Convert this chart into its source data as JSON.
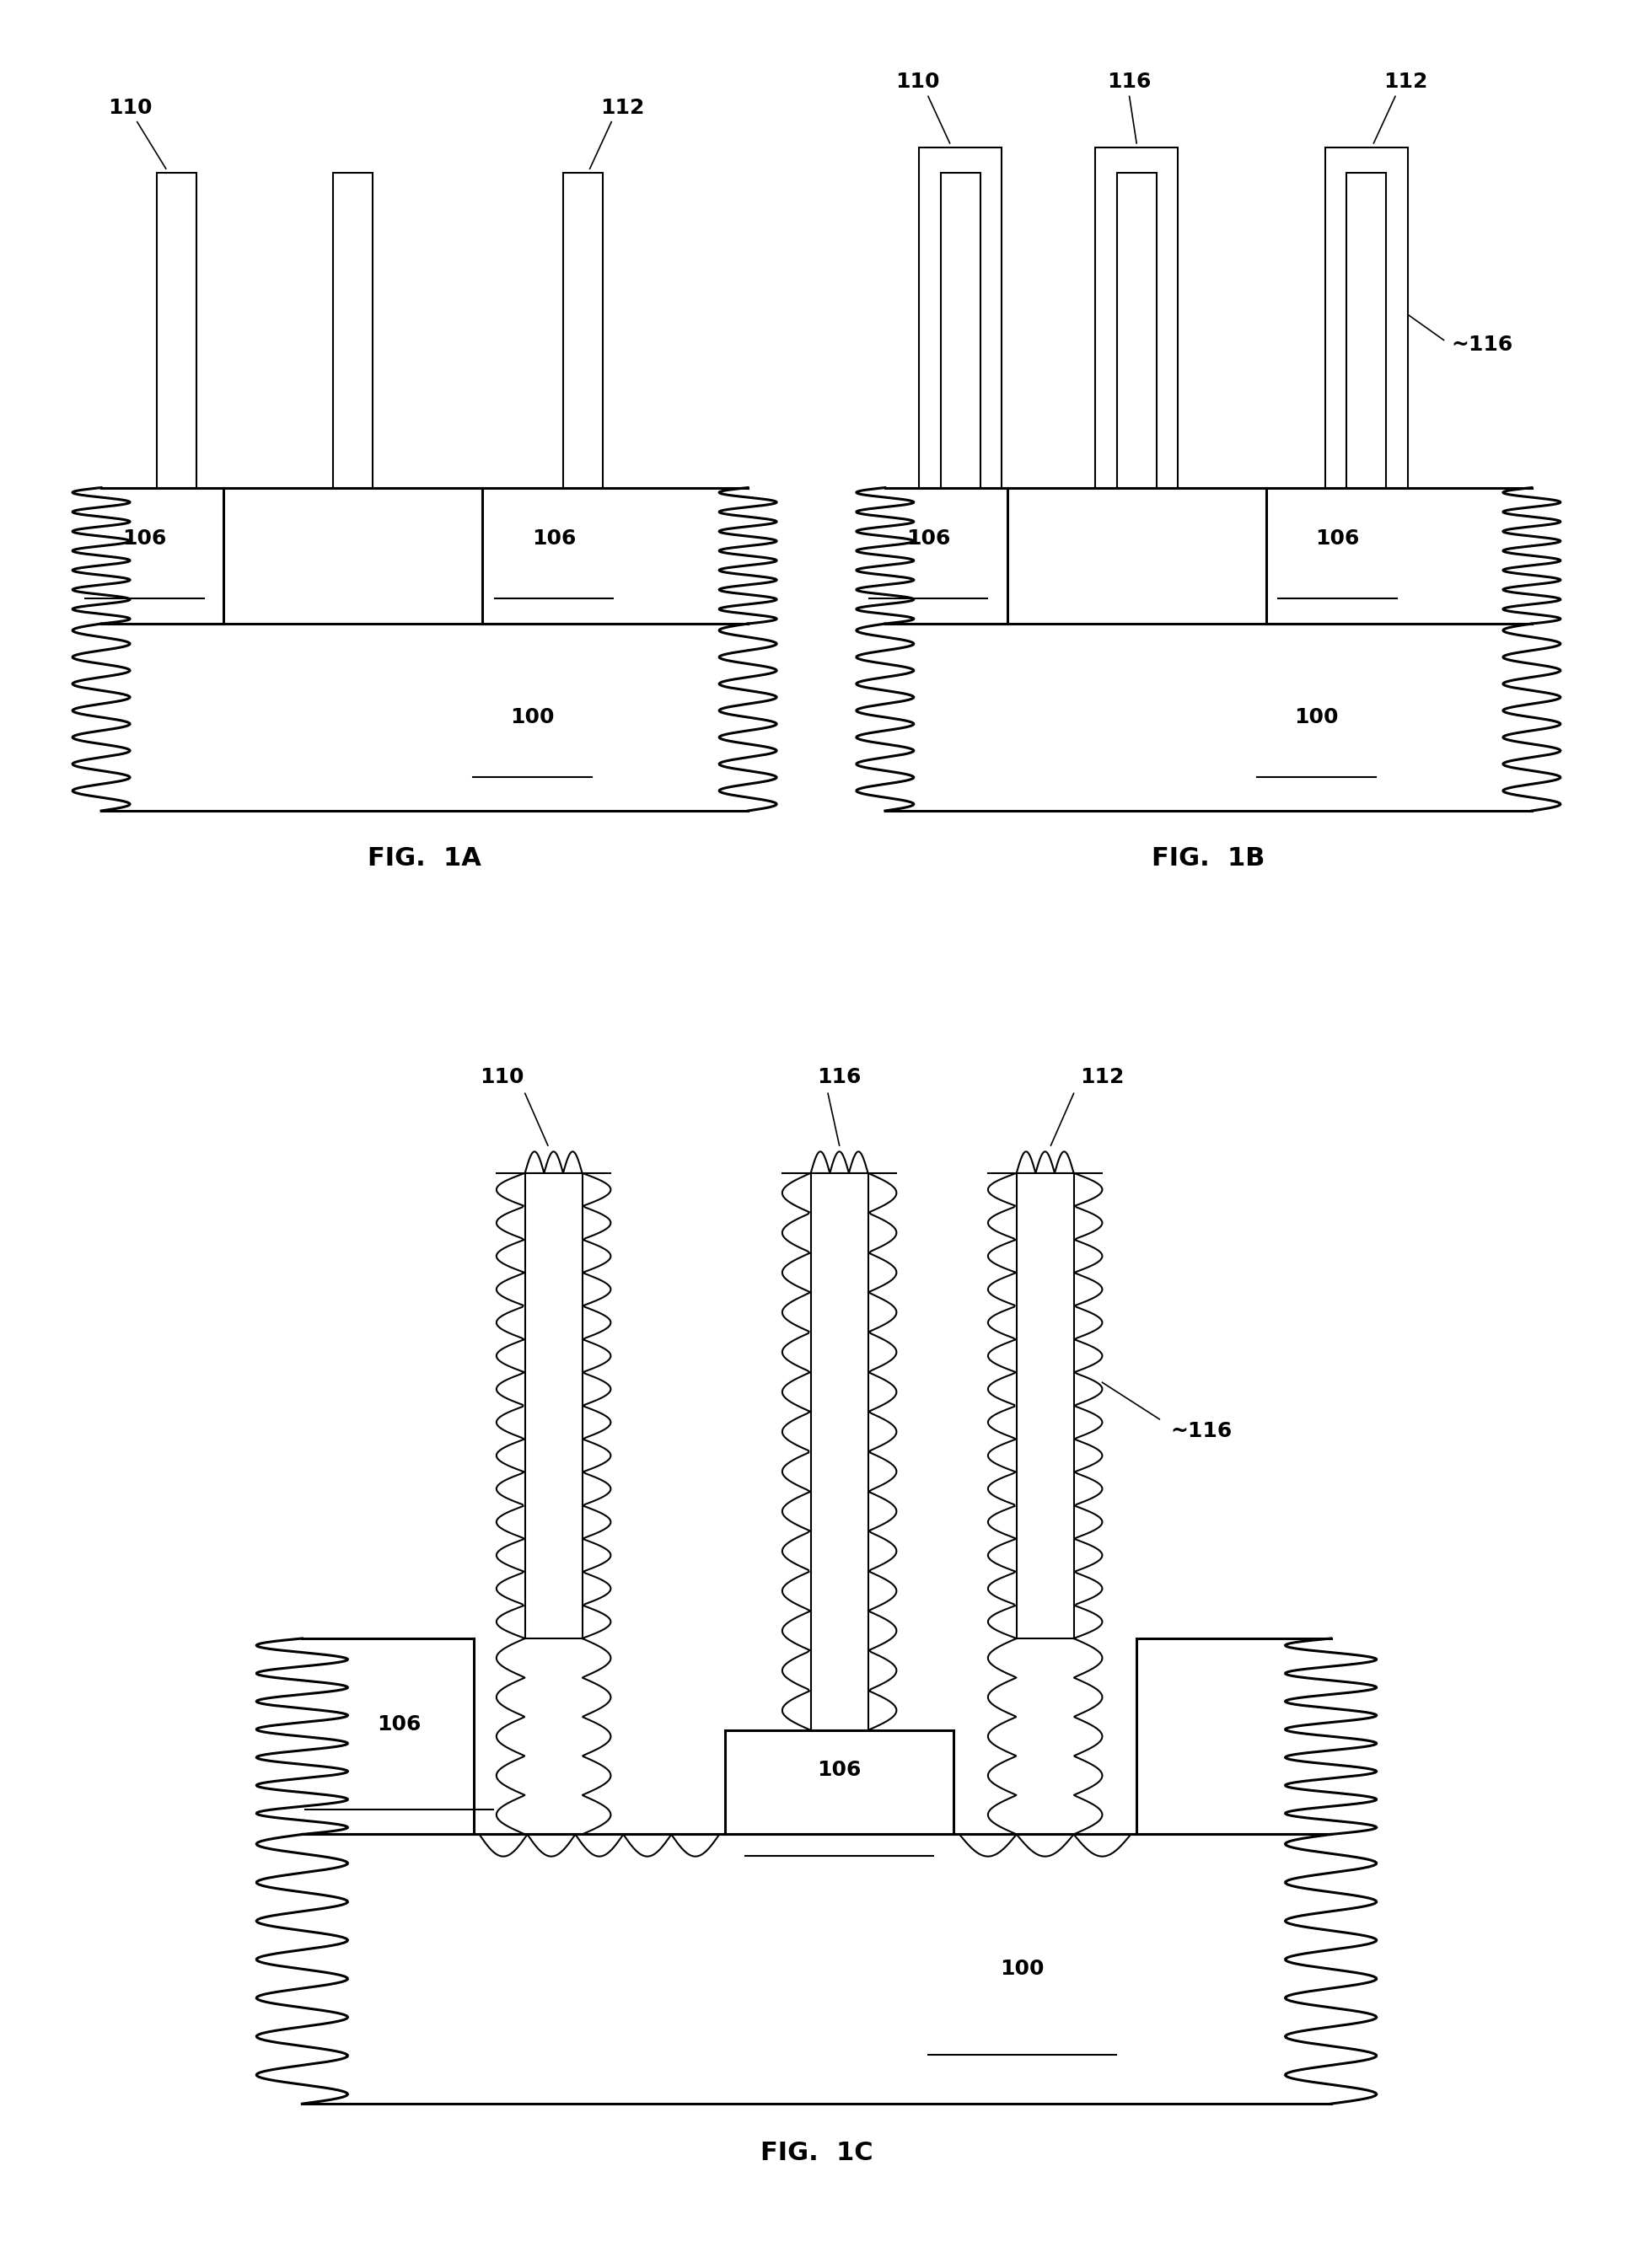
{
  "bg_color": "#ffffff",
  "lw_thin": 1.5,
  "lw_thick": 2.2,
  "font_size_ref": 18,
  "font_size_fig": 22,
  "fig1a_label": "FIG.  1A",
  "fig1b_label": "FIG.  1B",
  "fig1c_label": "FIG.  1C"
}
